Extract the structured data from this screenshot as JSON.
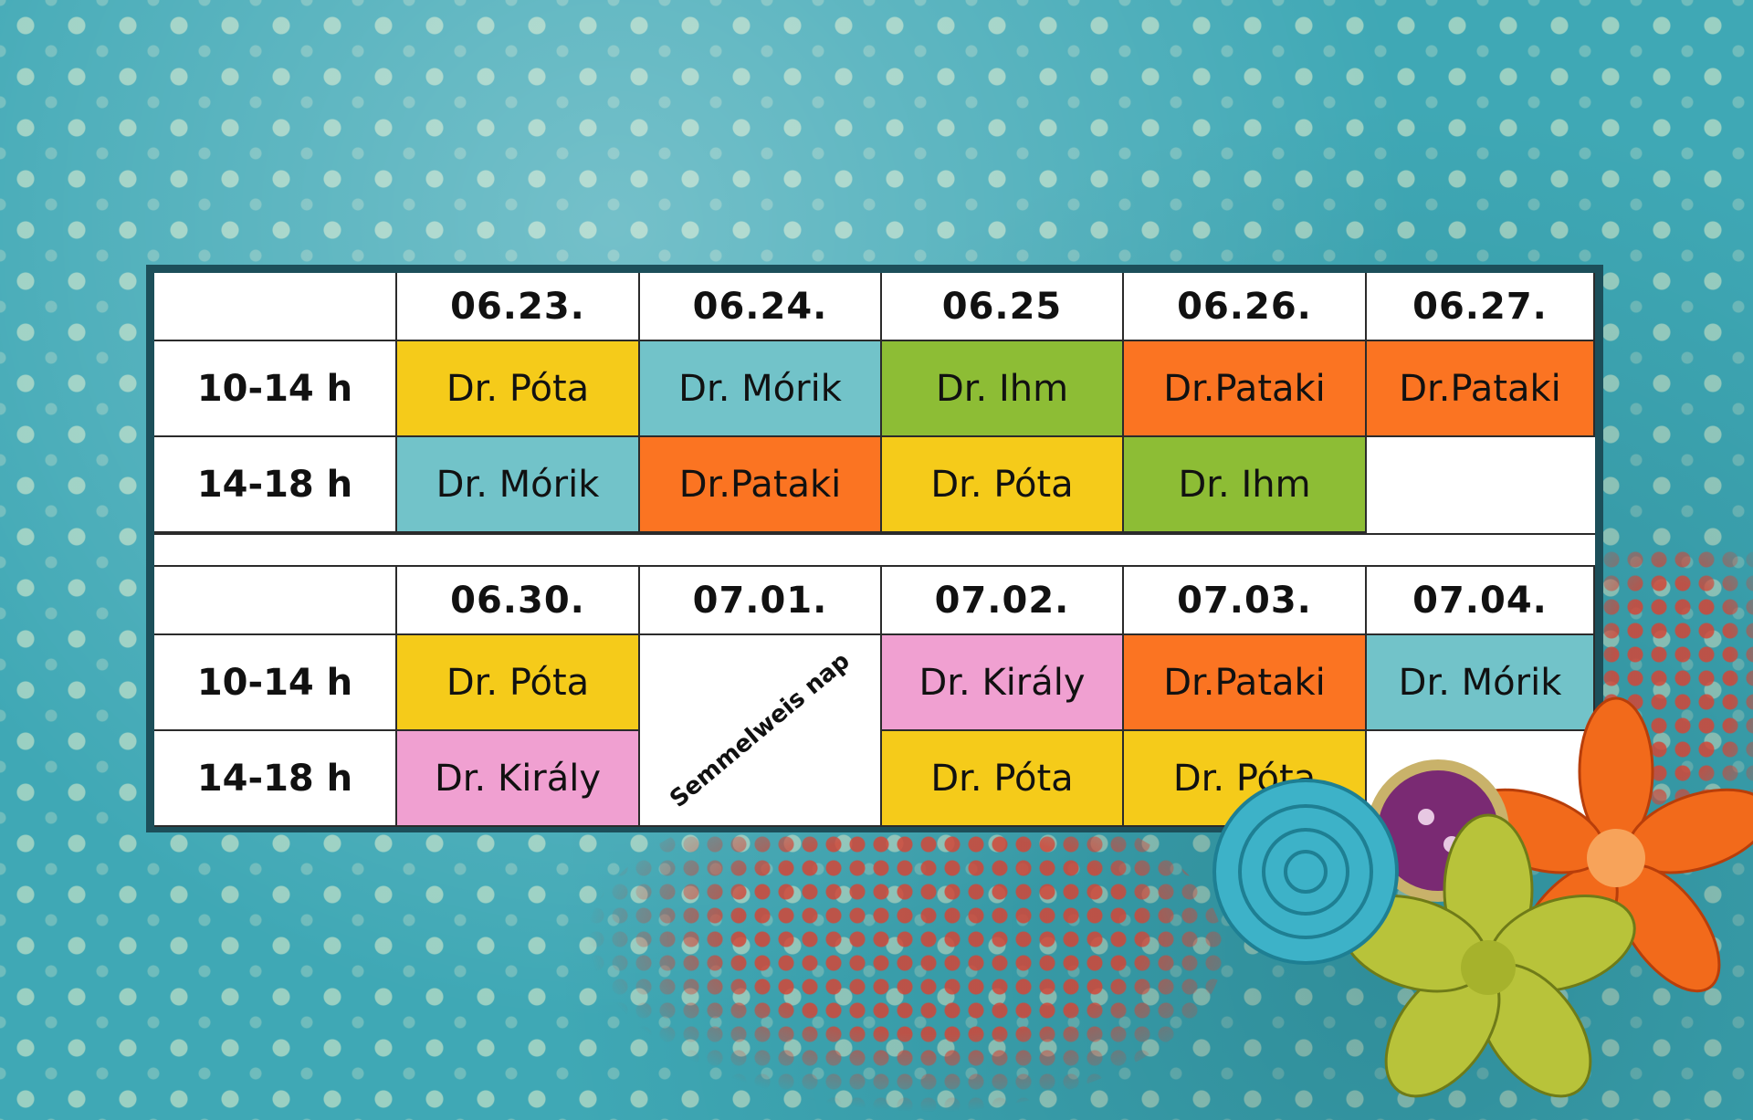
{
  "colors": {
    "yellow": "#f5cb1a",
    "teal": "#72c3c9",
    "green": "#8dbd35",
    "orange": "#fb7422",
    "pink": "#f0a0d1",
    "empty": "#ffffff",
    "frame": "#1c4f5a"
  },
  "week1": {
    "dates": [
      "06.23.",
      "06.24.",
      "06.25",
      "06.26.",
      "06.27."
    ],
    "rows": [
      {
        "time": "10-14 h",
        "cells": [
          {
            "text": "Dr. Póta",
            "color": "yellow"
          },
          {
            "text": "Dr. Mórik",
            "color": "teal"
          },
          {
            "text": "Dr. Ihm",
            "color": "green"
          },
          {
            "text": "Dr.Pataki",
            "color": "orange"
          },
          {
            "text": "Dr.Pataki",
            "color": "orange"
          }
        ]
      },
      {
        "time": "14-18 h",
        "cells": [
          {
            "text": "Dr. Mórik",
            "color": "teal"
          },
          {
            "text": "Dr.Pataki",
            "color": "orange"
          },
          {
            "text": "Dr. Póta",
            "color": "yellow"
          },
          {
            "text": "Dr. Ihm",
            "color": "green"
          },
          {
            "text": "",
            "color": "empty"
          }
        ]
      }
    ]
  },
  "week2": {
    "dates": [
      "06.30.",
      "07.01.",
      "07.02.",
      "07.03.",
      "07.04."
    ],
    "rows": [
      {
        "time": "10-14 h",
        "cells": [
          {
            "text": "Dr. Póta",
            "color": "yellow"
          },
          {
            "text": "",
            "color": "empty"
          },
          {
            "text": "Dr. Király",
            "color": "pink"
          },
          {
            "text": "Dr.Pataki",
            "color": "orange"
          },
          {
            "text": "Dr. Mórik",
            "color": "teal"
          }
        ]
      },
      {
        "time": "14-18 h",
        "cells": [
          {
            "text": "Dr. Király",
            "color": "pink"
          },
          {
            "text": "",
            "color": "empty"
          },
          {
            "text": "Dr. Póta",
            "color": "yellow"
          },
          {
            "text": "Dr. Póta",
            "color": "yellow"
          },
          {
            "text": "",
            "color": "empty"
          }
        ]
      }
    ],
    "holiday_note": "Semmelweis nap"
  }
}
